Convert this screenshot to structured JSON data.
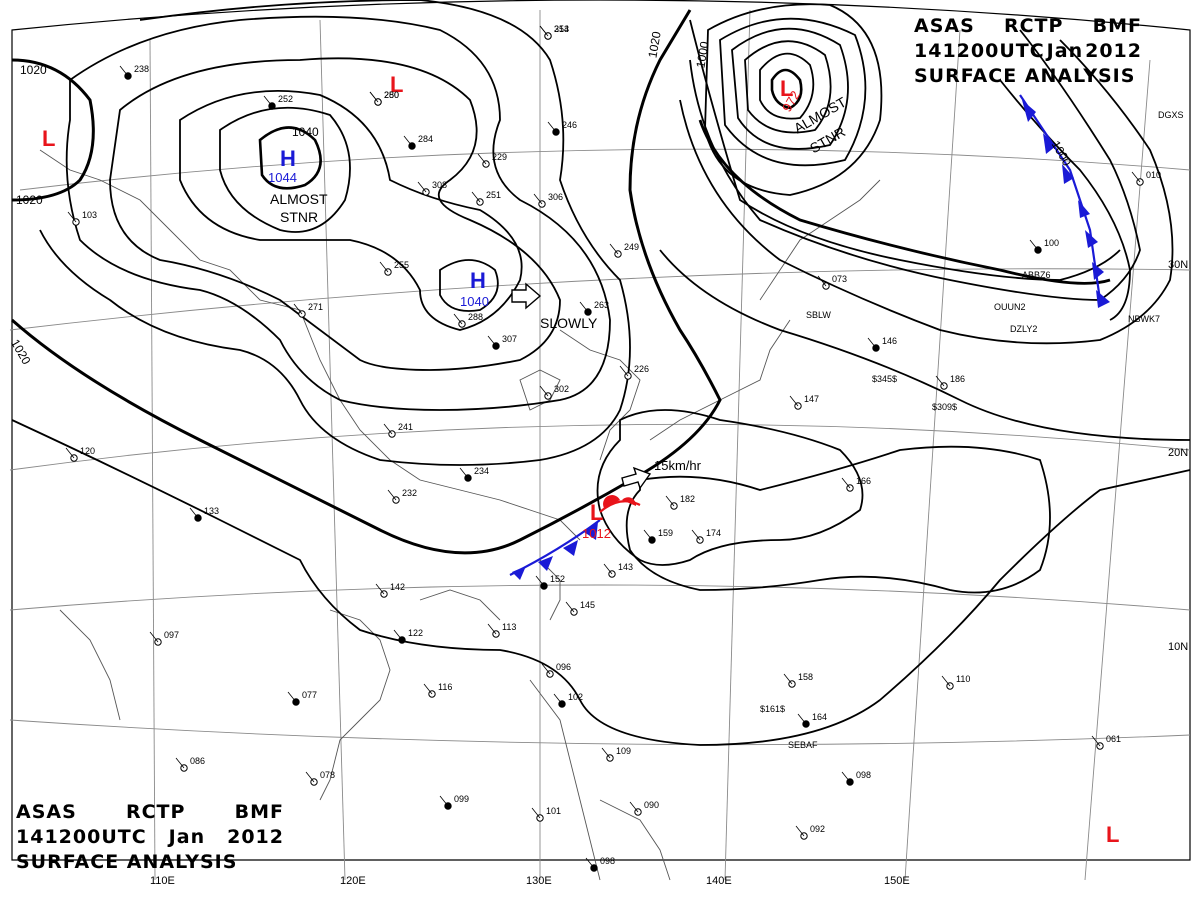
{
  "map": {
    "title_block": {
      "line1": [
        "ASAS",
        "RCTP",
        "BMF"
      ],
      "line2": [
        "141200UTC",
        "Jan",
        "2012"
      ],
      "line3": "SURFACE ANALYSIS"
    },
    "longitude_labels": [
      "110E",
      "120E",
      "130E",
      "140E",
      "150E"
    ],
    "latitude_labels": [
      "30N",
      "20N",
      "10N"
    ],
    "isobar_labels": [
      "1020",
      "1020",
      "1020",
      "1020",
      "1040",
      "1000",
      "1000"
    ],
    "highs": [
      {
        "symbol": "H",
        "pressure": "1044",
        "note": "ALMOST STNR"
      },
      {
        "symbol": "H",
        "pressure": "1040",
        "motion": "SLOWLY"
      }
    ],
    "lows": [
      {
        "symbol": "L",
        "pressure": "972",
        "note": "ALMOST STNR"
      },
      {
        "symbol": "L",
        "pressure": "1012",
        "motion": "15km/hr"
      },
      {
        "symbol": "L"
      },
      {
        "symbol": "L"
      },
      {
        "symbol": "L"
      }
    ],
    "colors": {
      "high": "#1a1ad6",
      "low": "#e8141b",
      "isobar": "#000000",
      "grid": "#8a8a8a",
      "coast": "#555555"
    },
    "station_numbers": [
      "314",
      "250",
      "229",
      "246",
      "306",
      "249",
      "263",
      "226",
      "241",
      "234",
      "232",
      "142",
      "122",
      "113",
      "116",
      "077",
      "086",
      "078",
      "099",
      "101",
      "096",
      "102",
      "109",
      "090",
      "098",
      "145",
      "143",
      "152",
      "182",
      "174",
      "159",
      "166",
      "158",
      "164",
      "110",
      "061",
      "098",
      "092",
      "073",
      "146",
      "147",
      "186",
      "100",
      "010",
      "120",
      "133",
      "097",
      "103",
      "238",
      "271",
      "288",
      "307",
      "302",
      "255",
      "284",
      "308",
      "251",
      "252",
      "253",
      "280"
    ],
    "station_codes": [
      "$345$",
      "$309$",
      "$161$",
      "SBLW",
      "DZLY2",
      "OUUN2",
      "ABBZ6",
      "NBWK7",
      "DGXS",
      "SEBAF"
    ]
  }
}
